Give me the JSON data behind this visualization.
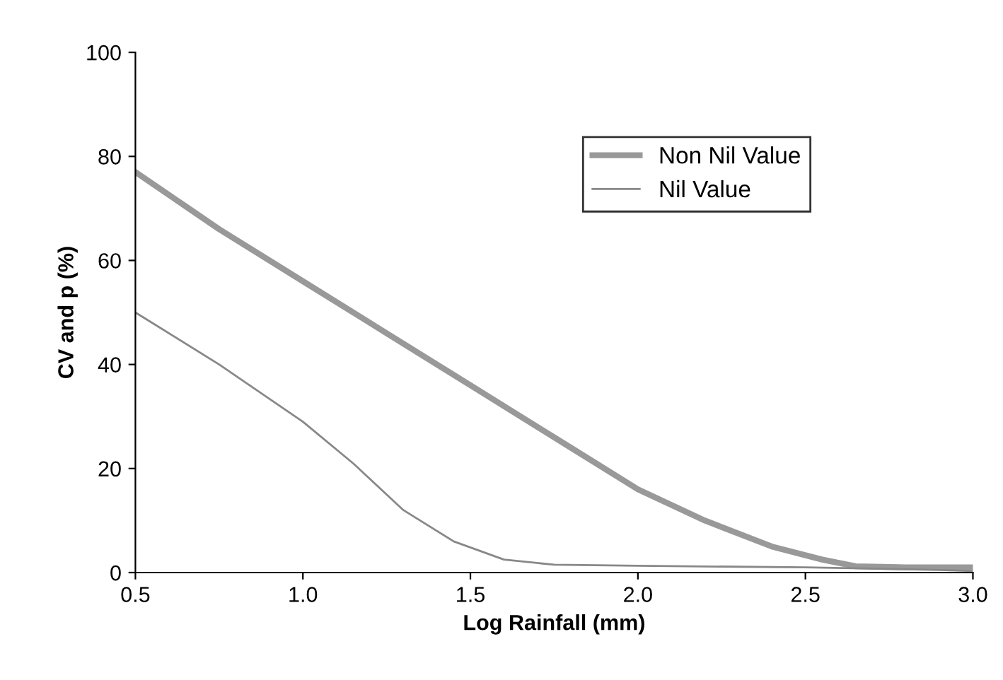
{
  "chart_data": {
    "type": "line",
    "xlabel": "Log Rainfall (mm)",
    "ylabel": "CV and p (%)",
    "xlim": [
      0.5,
      3.0
    ],
    "xticks": [
      {
        "value": 0.5,
        "label": "0.5"
      },
      {
        "value": 1.0,
        "label": "1.0"
      },
      {
        "value": 1.5,
        "label": "1.5"
      },
      {
        "value": 2.0,
        "label": "2.0"
      },
      {
        "value": 2.5,
        "label": "2.5"
      },
      {
        "value": 3.0,
        "label": "3.0"
      }
    ],
    "ylim": [
      0,
      100
    ],
    "yticks": [
      0,
      20,
      40,
      60,
      80,
      100
    ],
    "grid": false,
    "legend": "top right",
    "series": [
      {
        "name": "Non Nil Value",
        "color": "#999999",
        "x": [
          0.5,
          0.75,
          1.0,
          1.25,
          1.5,
          1.65,
          1.8,
          2.0,
          2.2,
          2.4,
          2.55,
          2.65,
          2.8,
          3.0
        ],
        "values": [
          77,
          66,
          56,
          46,
          36,
          30,
          24,
          16,
          10,
          5,
          2.5,
          1.2,
          1,
          1
        ]
      },
      {
        "name": "Nil Value",
        "color": "#888888",
        "x": [
          0.5,
          0.75,
          1.0,
          1.15,
          1.3,
          1.45,
          1.6,
          1.75,
          2.0,
          2.5,
          2.9,
          3.0
        ],
        "values": [
          50,
          40,
          29,
          21,
          12,
          6,
          2.5,
          1.5,
          1.3,
          1,
          0.5,
          0.3
        ]
      }
    ]
  }
}
